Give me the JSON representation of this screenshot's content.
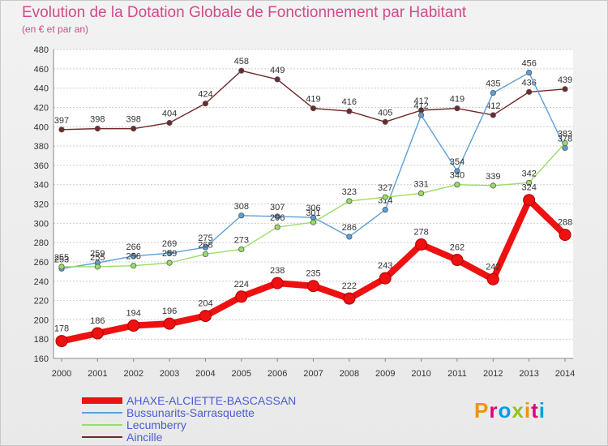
{
  "header": {
    "title": "Evolution de la Dotation Globale de Fonctionnement par Habitant",
    "subtitle": "(en € et par an)"
  },
  "brand": {
    "logo_text": "Proxiti"
  },
  "chart_data": {
    "type": "line",
    "title": "Evolution de la Dotation Globale de Fonctionnement par Habitant",
    "ylabel": "(en € et par an)",
    "xlabel": "",
    "ylim": [
      160,
      480
    ],
    "ytick_step": 20,
    "grid": true,
    "legend_position": "bottom-left",
    "x": [
      2000,
      2001,
      2002,
      2003,
      2004,
      2005,
      2006,
      2007,
      2008,
      2009,
      2010,
      2011,
      2012,
      2013,
      2014
    ],
    "series": [
      {
        "name": "Aincille",
        "color": "#6e2a2a",
        "width": "thin",
        "values": [
          397,
          398,
          398,
          404,
          424,
          458,
          449,
          419,
          416,
          405,
          417,
          419,
          412,
          436,
          439
        ]
      },
      {
        "name": "Bussunarits-Sarrasquette",
        "color": "#5e9fd6",
        "width": "thin",
        "values": [
          253,
          259,
          266,
          269,
          275,
          308,
          307,
          306,
          286,
          314,
          412,
          354,
          435,
          456,
          378
        ]
      },
      {
        "name": "Lecumberry",
        "color": "#99dd66",
        "width": "thin",
        "values": [
          255,
          255,
          256,
          259,
          268,
          273,
          296,
          301,
          323,
          327,
          331,
          340,
          339,
          342,
          383
        ]
      },
      {
        "name": "AHAXE-ALCIETTE-BASCASSAN",
        "color": "#ee1111",
        "width": "thick",
        "values": [
          178,
          186,
          194,
          196,
          204,
          224,
          238,
          235,
          222,
          243,
          278,
          262,
          242,
          324,
          288
        ]
      }
    ],
    "legend": [
      "AHAXE-ALCIETTE-BASCASSAN",
      "Bussunarits-Sarrasquette",
      "Lecumberry",
      "Aincille"
    ]
  }
}
